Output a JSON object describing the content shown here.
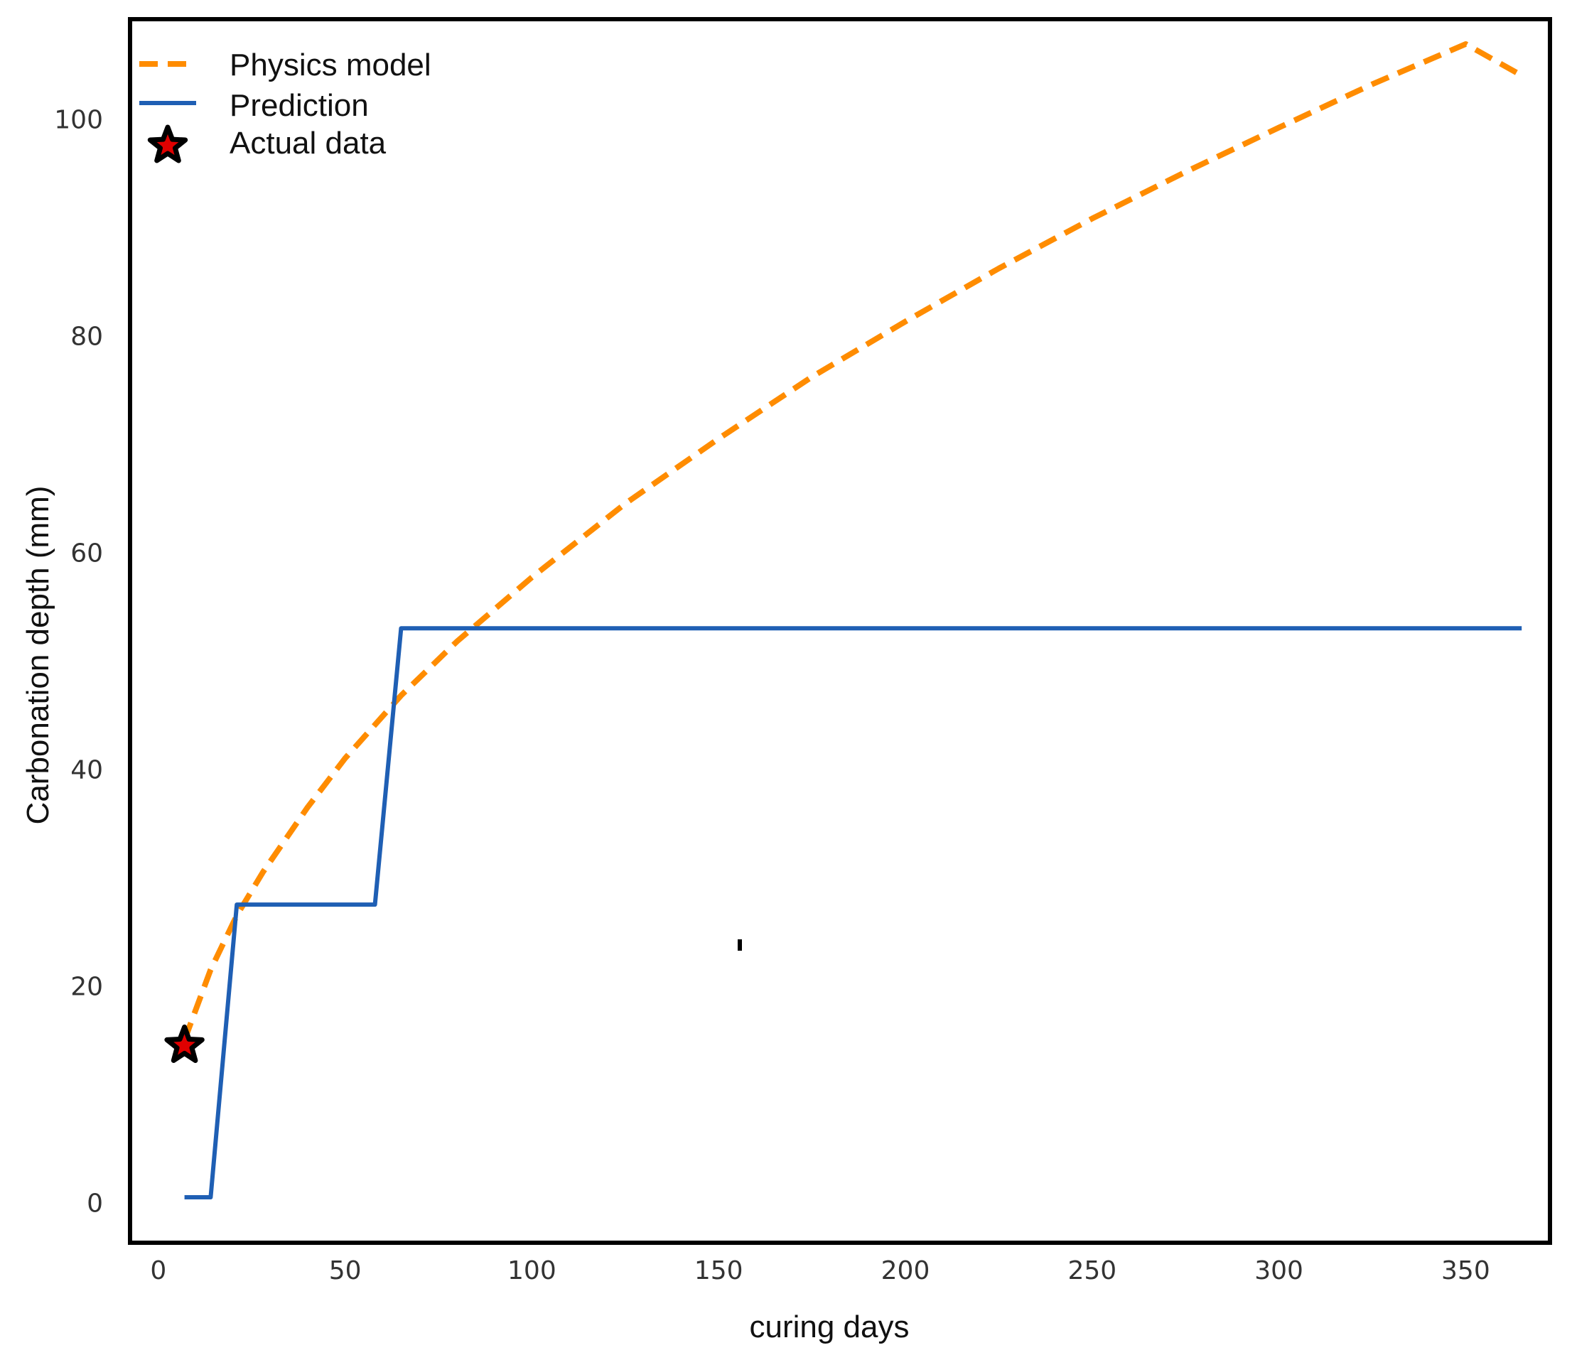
{
  "chart_data": {
    "type": "line",
    "title": "",
    "xlabel": "curing days",
    "ylabel": "Carbonation depth (mm)",
    "xlim": [
      -7,
      372
    ],
    "ylim": [
      -3.5,
      109
    ],
    "xticks": [
      0,
      50,
      100,
      150,
      200,
      250,
      300,
      350
    ],
    "yticks": [
      0,
      20,
      40,
      60,
      80,
      100
    ],
    "grid": false,
    "legend_position": "top-left",
    "series": [
      {
        "name": "Physics model",
        "style": "dashed",
        "color": "#ff8c00",
        "x": [
          7,
          14,
          21,
          28,
          40,
          50,
          65,
          80,
          100,
          125,
          150,
          175,
          200,
          225,
          250,
          275,
          300,
          325,
          350,
          365
        ],
        "y": [
          15.0,
          21.5,
          26.5,
          30.5,
          36.5,
          41.0,
          46.8,
          51.8,
          57.7,
          64.5,
          70.5,
          76.2,
          81.3,
          86.2,
          90.8,
          95.1,
          99.2,
          103.2,
          106.9,
          104.0
        ]
      },
      {
        "name": "Prediction",
        "style": "solid",
        "color": "#1f5fb4",
        "x": [
          7,
          14,
          21,
          58,
          65,
          365
        ],
        "y": [
          0.5,
          0.5,
          27.5,
          27.5,
          53.0,
          53.0
        ]
      },
      {
        "name": "Actual data",
        "style": "marker-star",
        "color": "#000000",
        "fill": "#e00000",
        "x": [
          7
        ],
        "y": [
          14.5
        ]
      }
    ]
  }
}
